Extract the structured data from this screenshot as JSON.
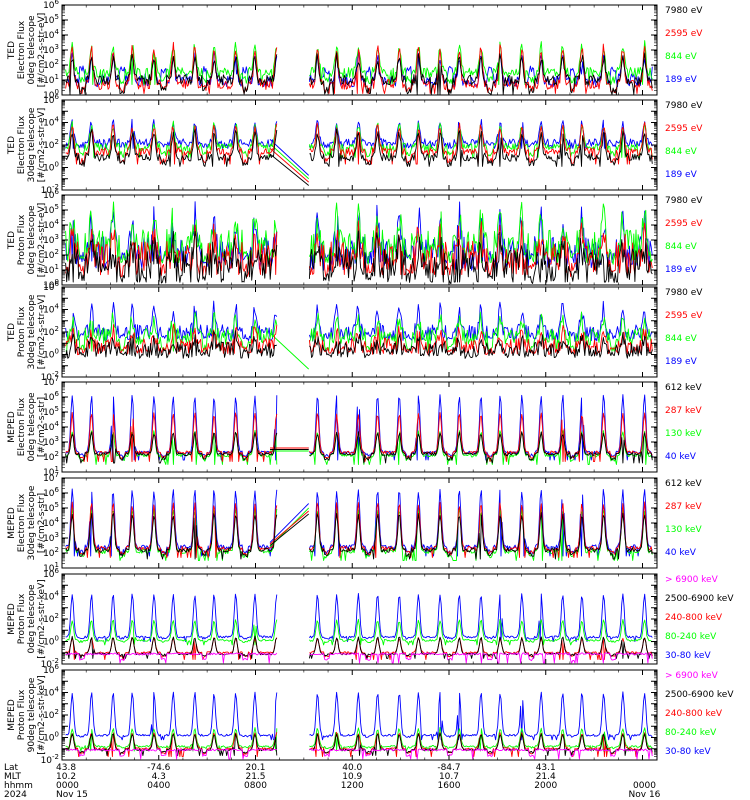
{
  "colors": {
    "red": "#ff0000",
    "green": "#00ff00",
    "blue": "#0000ff",
    "black": "#000000",
    "magenta": "#ff00ff"
  },
  "chart_data": [
    {
      "type": "line",
      "instrument": "TED",
      "ylabel": [
        "TED",
        "Electron Flux",
        "0deg telescope",
        "[#/cm2-s-str-eV]"
      ],
      "y_scale": "log",
      "ylim_exp": [
        0,
        6
      ],
      "tick_exps": [
        0,
        1,
        2,
        3,
        4,
        5,
        6
      ],
      "legend": [
        {
          "label": "7980 eV",
          "color": "#000000"
        },
        {
          "label": "2595 eV",
          "color": "#ff0000"
        },
        {
          "label": "844 eV",
          "color": "#00ff00"
        },
        {
          "label": "189 eV",
          "color": "#0000ff"
        }
      ],
      "profile": {
        "base": [
          1.0,
          0.7,
          1.5,
          0.9
        ],
        "peak": [
          1.5,
          2.5,
          1.8,
          1.7
        ],
        "floor": [
          0.3,
          0.4,
          1.0,
          1.7
        ],
        "spike_w": 1.4,
        "noise": 0.5
      },
      "gap": "empty"
    },
    {
      "type": "line",
      "instrument": "TED",
      "ylabel": [
        "TED",
        "Electron Flux",
        "30deg telescope",
        "[#/cm2-s-str-eV]"
      ],
      "y_scale": "log",
      "ylim_exp": [
        -2,
        6
      ],
      "tick_exps": [
        -2,
        0,
        2,
        4,
        6
      ],
      "legend": [
        {
          "label": "7980 eV",
          "color": "#000000"
        },
        {
          "label": "2595 eV",
          "color": "#ff0000"
        },
        {
          "label": "844 eV",
          "color": "#00ff00"
        },
        {
          "label": "189 eV",
          "color": "#0000ff"
        }
      ],
      "profile": {
        "base": [
          0.9,
          1.4,
          1.8,
          2.2
        ],
        "peak": [
          2.2,
          2.3,
          2.0,
          1.8
        ],
        "floor": [
          0.4,
          0.6,
          1.2,
          2.0
        ],
        "spike_w": 1.4,
        "noise": 0.5
      },
      "gap": "ramp_down",
      "gap_ends": [
        -1.6,
        -1.3,
        -1.0,
        -0.7
      ]
    },
    {
      "type": "line",
      "instrument": "TED",
      "ylabel": [
        "TED",
        "Proton Flux",
        "0deg telescope",
        "[#/cm2-s-str-eV]"
      ],
      "y_scale": "log",
      "ylim_exp": [
        0,
        6
      ],
      "tick_exps": [
        0,
        1,
        2,
        3,
        4,
        5,
        6
      ],
      "legend": [
        {
          "label": "7980 eV",
          "color": "#000000"
        },
        {
          "label": "2595 eV",
          "color": "#ff0000"
        },
        {
          "label": "844 eV",
          "color": "#00ff00"
        },
        {
          "label": "189 eV",
          "color": "#0000ff"
        }
      ],
      "profile": {
        "base": [
          1.3,
          1.8,
          2.6,
          2.1
        ],
        "peak": [
          1.2,
          1.5,
          2.0,
          2.4
        ],
        "floor": [
          0.5,
          1.0,
          1.8,
          1.9
        ],
        "spike_w": 2.5,
        "noise": 0.9
      },
      "gap": "empty"
    },
    {
      "type": "line",
      "instrument": "TED",
      "ylabel": [
        "TED",
        "Proton Flux",
        "30deg telescope",
        "[#/cm2-s-str-eV]"
      ],
      "y_scale": "log",
      "ylim_exp": [
        -2,
        6
      ],
      "tick_exps": [
        -2,
        0,
        2,
        4,
        6
      ],
      "legend": [
        {
          "label": "7980 eV",
          "color": "#000000"
        },
        {
          "label": "2595 eV",
          "color": "#ff0000"
        },
        {
          "label": "844 eV",
          "color": "#00ff00"
        },
        {
          "label": "189 eV",
          "color": "#0000ff"
        }
      ],
      "profile": {
        "base": [
          0.4,
          0.7,
          1.6,
          1.9
        ],
        "peak": [
          1.0,
          1.3,
          1.6,
          2.2
        ],
        "floor": [
          0.2,
          0.4,
          0.6,
          1.7
        ],
        "spike_w": 2.5,
        "noise": 0.6
      },
      "gap": "ramp_down_green",
      "gap_ends": [
        null,
        null,
        -1.3,
        null
      ]
    },
    {
      "type": "line",
      "instrument": "MEPED",
      "ylabel": [
        "MEPED",
        "Electron Flux",
        "0deg telescope",
        "[#/cm2-s-str]"
      ],
      "y_scale": "log",
      "ylim_exp": [
        1,
        7
      ],
      "tick_exps": [
        1,
        2,
        3,
        4,
        5,
        6,
        7
      ],
      "legend": [
        {
          "label": "612 keV",
          "color": "#000000"
        },
        {
          "label": "287 keV",
          "color": "#ff0000"
        },
        {
          "label": "130 keV",
          "color": "#00ff00"
        },
        {
          "label": "40 keV",
          "color": "#0000ff"
        }
      ],
      "profile": {
        "base": [
          2.2,
          2.3,
          2.1,
          2.3
        ],
        "peak": [
          1.4,
          2.6,
          1.6,
          3.8
        ],
        "floor": [
          1.9,
          2.0,
          1.8,
          2.1
        ],
        "spike_w": 0.8,
        "noise": 0.25
      },
      "gap": "flat"
    },
    {
      "type": "line",
      "instrument": "MEPED",
      "ylabel": [
        "MEPED",
        "Electron Flux",
        "30deg telescope",
        "[#/cm2-s-str]"
      ],
      "y_scale": "log",
      "ylim_exp": [
        1,
        7
      ],
      "tick_exps": [
        1,
        2,
        3,
        4,
        5,
        6,
        7
      ],
      "legend": [
        {
          "label": "612 keV",
          "color": "#000000"
        },
        {
          "label": "287 keV",
          "color": "#ff0000"
        },
        {
          "label": "130 keV",
          "color": "#00ff00"
        },
        {
          "label": "40 keV",
          "color": "#0000ff"
        }
      ],
      "profile": {
        "base": [
          2.2,
          2.3,
          2.1,
          2.4
        ],
        "peak": [
          2.4,
          3.0,
          2.8,
          3.8
        ],
        "floor": [
          1.9,
          2.0,
          1.8,
          2.1
        ],
        "spike_w": 1.0,
        "noise": 0.3
      },
      "gap": "ramp_up",
      "gap_ends": [
        4.6,
        4.8,
        5.0,
        5.3
      ]
    },
    {
      "type": "line",
      "instrument": "MEPED",
      "ylabel": [
        "MEPED",
        "Proton Flux",
        "0deg telescope",
        "[#/cm2-s-str-keV]"
      ],
      "y_scale": "log",
      "ylim_exp": [
        -2,
        6
      ],
      "tick_exps": [
        -2,
        0,
        2,
        4,
        6
      ],
      "legend": [
        {
          "label": "> 6900 keV",
          "color": "#ff00ff"
        },
        {
          "label": "2500-6900 keV",
          "color": "#000000"
        },
        {
          "label": "240-800 keV",
          "color": "#ff0000"
        },
        {
          "label": "80-240 keV",
          "color": "#00ff00"
        },
        {
          "label": "30-80 keV",
          "color": "#0000ff"
        }
      ],
      "profile": {
        "base": [
          -1.1,
          -1.1,
          -1.0,
          0.1,
          0.4
        ],
        "peak": [
          0.0,
          1.5,
          1.3,
          1.8,
          3.8
        ],
        "floor": [
          -1.6,
          -1.2,
          -1.3,
          0.0,
          0.3
        ],
        "spike_w": 0.9,
        "noise": 0.2
      },
      "gap": "empty"
    },
    {
      "type": "line",
      "instrument": "MEPED",
      "ylabel": [
        "MEPED",
        "Proton Flux",
        "90deg telescope",
        "[#/cm2-s-str-keV]"
      ],
      "y_scale": "log",
      "ylim_exp": [
        -2,
        6
      ],
      "tick_exps": [
        -2,
        0,
        2,
        4,
        6
      ],
      "legend": [
        {
          "label": "> 6900 keV",
          "color": "#ff00ff"
        },
        {
          "label": "2500-6900 keV",
          "color": "#000000"
        },
        {
          "label": "240-800 keV",
          "color": "#ff0000"
        },
        {
          "label": "80-240 keV",
          "color": "#00ff00"
        },
        {
          "label": "30-80 keV",
          "color": "#0000ff"
        }
      ],
      "profile": {
        "base": [
          -1.1,
          -1.1,
          -1.0,
          -0.8,
          0.2
        ],
        "peak": [
          0.0,
          1.4,
          1.4,
          1.6,
          3.8
        ],
        "floor": [
          -1.6,
          -1.3,
          -1.4,
          -0.9,
          0.1
        ],
        "spike_w": 0.9,
        "noise": 0.2
      },
      "gap": "empty"
    }
  ],
  "x_axis": {
    "row_labels": [
      "Lat",
      "MLT",
      "hhmm",
      "2024"
    ],
    "columns": [
      {
        "hour": 0,
        "lat": "43.8",
        "mlt": "10.2",
        "hhmm": "0000",
        "date": "Nov 15"
      },
      {
        "hour": 4,
        "lat": "-74.6",
        "mlt": "4.3",
        "hhmm": "0400",
        "date": ""
      },
      {
        "hour": 8,
        "lat": "20.1",
        "mlt": "21.5",
        "hhmm": "0800",
        "date": ""
      },
      {
        "hour": 12,
        "lat": "40.0",
        "mlt": "10.9",
        "hhmm": "1200",
        "date": ""
      },
      {
        "hour": 16,
        "lat": "-84.7",
        "mlt": "10.7",
        "hhmm": "1600",
        "date": ""
      },
      {
        "hour": 20,
        "lat": "43.1",
        "mlt": "21.4",
        "hhmm": "2000",
        "date": ""
      },
      {
        "hour": 24,
        "lat": "",
        "mlt": "",
        "hhmm": "0000",
        "date": "Nov 16"
      }
    ],
    "xlim_hours": [
      0,
      24.6
    ],
    "data_gap_hours": [
      8.9,
      10.2
    ],
    "hours_per_orbit": 1.69
  }
}
